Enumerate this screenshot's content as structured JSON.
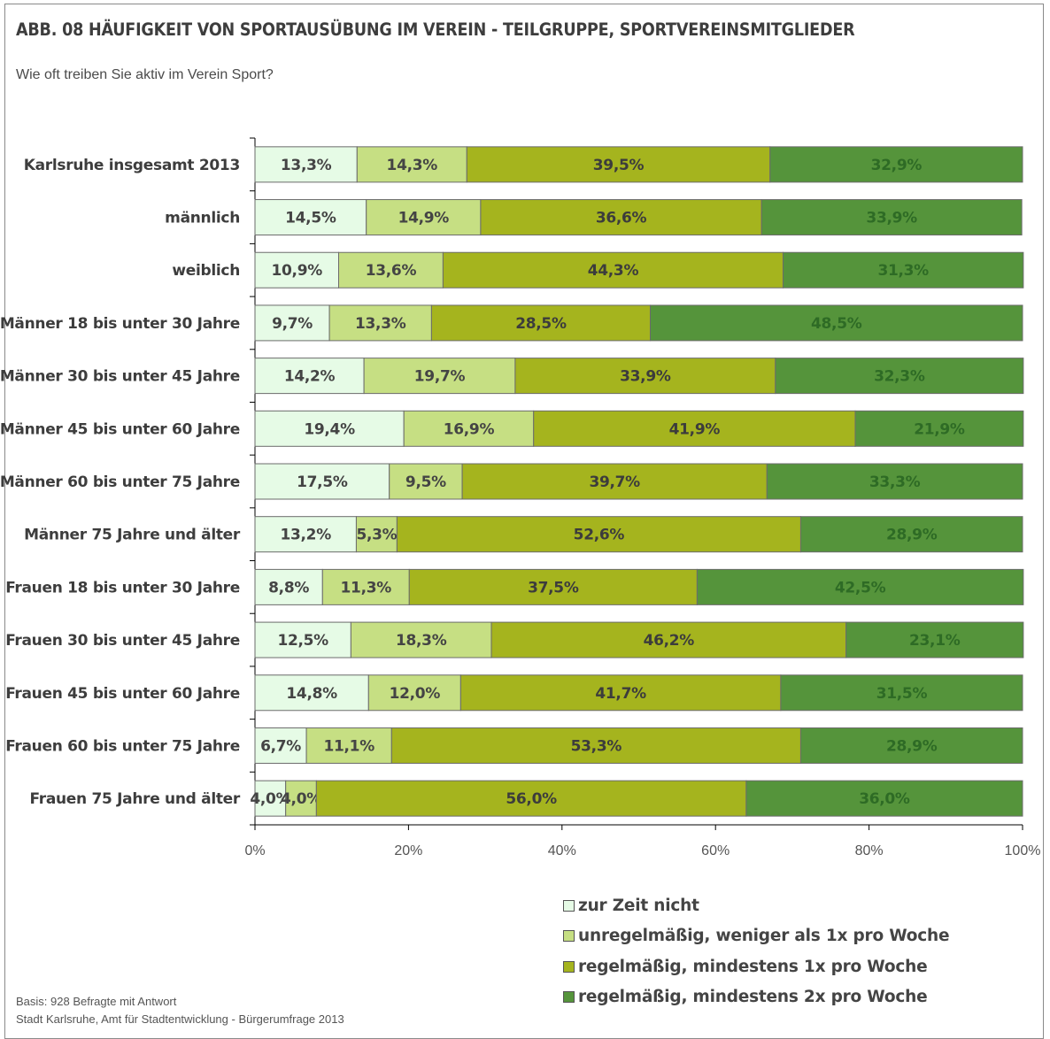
{
  "title": "ABB. 08 HÄUFIGKEIT VON SPORTAUSÜBUNG IM VEREIN - TEILGRUPPE, SPORTVEREINSMITGLIEDER",
  "subtitle": "Wie oft treiben Sie aktiv im Verein Sport?",
  "footnotes": {
    "basis": "Basis: 928 Befragte mit Antwort",
    "source": "Stadt Karlsruhe, Amt für Stadtentwicklung - Bürgerumfrage 2013"
  },
  "chart_data": {
    "type": "bar",
    "orientation": "horizontal",
    "stacked": "percent",
    "categories": [
      "Karlsruhe insgesamt 2013",
      "männlich",
      "weiblich",
      "Männer 18 bis unter 30 Jahre",
      "Männer 30 bis unter 45 Jahre",
      "Männer 45 bis unter 60 Jahre",
      "Männer 60 bis unter 75 Jahre",
      "Männer 75 Jahre und älter",
      "Frauen 18 bis unter 30 Jahre",
      "Frauen 30 bis unter 45 Jahre",
      "Frauen 45 bis unter 60 Jahre",
      "Frauen 60 bis unter 75 Jahre",
      "Frauen 75 Jahre und älter"
    ],
    "series": [
      {
        "name": "zur Zeit nicht",
        "color": "#e6fbe6",
        "values": [
          13.3,
          14.5,
          10.9,
          9.7,
          14.2,
          19.4,
          17.5,
          13.2,
          8.8,
          12.5,
          14.8,
          6.7,
          4.0
        ]
      },
      {
        "name": "unregelmäßig, weniger als 1x pro Woche",
        "color": "#c6df83",
        "values": [
          14.3,
          14.9,
          13.6,
          13.3,
          19.7,
          16.9,
          9.5,
          5.3,
          11.3,
          18.3,
          12.0,
          11.1,
          4.0
        ]
      },
      {
        "name": "regelmäßig, mindestens 1x pro Woche",
        "color": "#a5b41e",
        "values": [
          39.5,
          36.6,
          44.3,
          28.5,
          33.9,
          41.9,
          39.7,
          52.6,
          37.5,
          46.2,
          41.7,
          53.3,
          56.0
        ]
      },
      {
        "name": "regelmäßig, mindestens 2x pro Woche",
        "color": "#55943b",
        "values": [
          32.9,
          33.9,
          31.3,
          48.5,
          32.3,
          21.9,
          33.3,
          28.9,
          42.5,
          23.1,
          31.5,
          28.9,
          36.0
        ]
      }
    ],
    "x_ticks": [
      "0%",
      "20%",
      "40%",
      "60%",
      "80%",
      "100%"
    ],
    "xlim": [
      0,
      100
    ],
    "legend_position": "bottom",
    "grid": false
  }
}
